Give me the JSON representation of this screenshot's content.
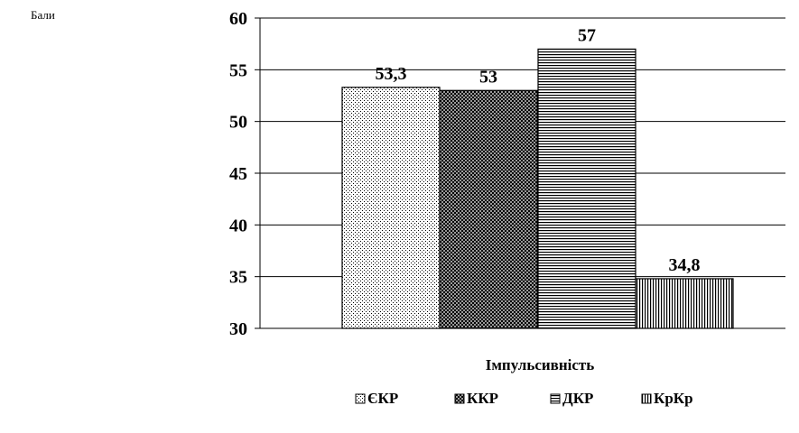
{
  "chart_data": {
    "type": "bar",
    "unit_label": "Бали",
    "xlabel": "Імпульсивність",
    "ylabel": "",
    "ylim": [
      30,
      60
    ],
    "yticks": [
      30,
      35,
      40,
      45,
      50,
      55,
      60
    ],
    "grid": true,
    "legend_position": "bottom",
    "series": [
      {
        "name": "ЄКР",
        "value": 53.3,
        "label": "53,3",
        "pattern": "dots"
      },
      {
        "name": "ККР",
        "value": 53,
        "label": "53",
        "pattern": "crosshatch"
      },
      {
        "name": "ДКР",
        "value": 57,
        "label": "57",
        "pattern": "horizontal-lines"
      },
      {
        "name": "КрКр",
        "value": 34.8,
        "label": "34,8",
        "pattern": "vertical-lines"
      }
    ]
  }
}
